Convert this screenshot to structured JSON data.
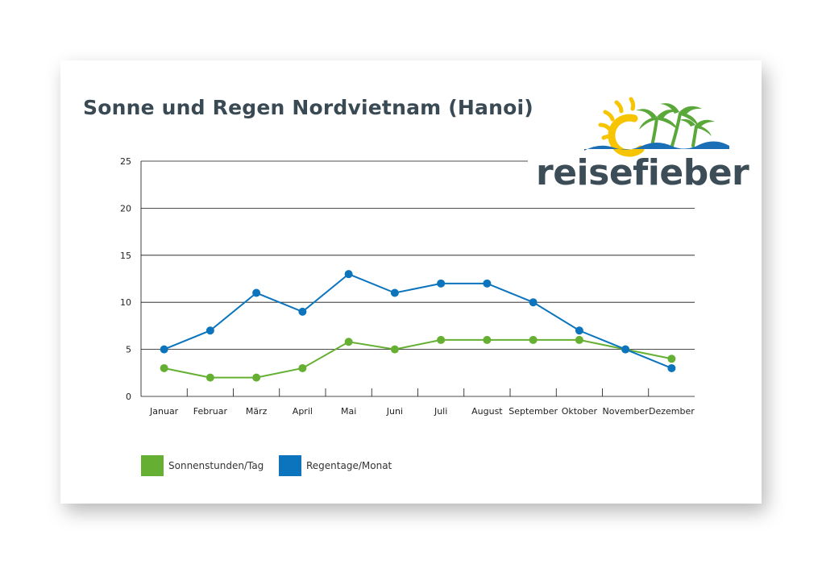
{
  "chart_data": {
    "type": "line",
    "title": "Sonne und Regen Nordvietnam (Hanoi)",
    "categories": [
      "Januar",
      "Februar",
      "März",
      "April",
      "Mai",
      "Juni",
      "Juli",
      "August",
      "September",
      "Oktober",
      "November",
      "Dezember"
    ],
    "series": [
      {
        "name": "Sonnenstunden/Tag",
        "color": "#65b032",
        "values": [
          3,
          2,
          2,
          3,
          5.8,
          5,
          6,
          6,
          6,
          6,
          5,
          4
        ]
      },
      {
        "name": "Regentage/Monat",
        "color": "#0b74bd",
        "values": [
          5,
          7,
          11,
          9,
          13,
          11,
          12,
          12,
          10,
          7,
          5,
          3
        ]
      }
    ],
    "ylim": [
      0,
      25
    ],
    "yticks": [
      0,
      5,
      10,
      15,
      20,
      25
    ],
    "grid": true,
    "legend_position": "bottom-left"
  },
  "logo": {
    "text": "reisefieber"
  },
  "colors": {
    "title": "#3a4a54",
    "logo_text": "#3d4d57",
    "sun": "#f6c400",
    "palm": "#5aa83a",
    "wave": "#1a6fb6"
  }
}
